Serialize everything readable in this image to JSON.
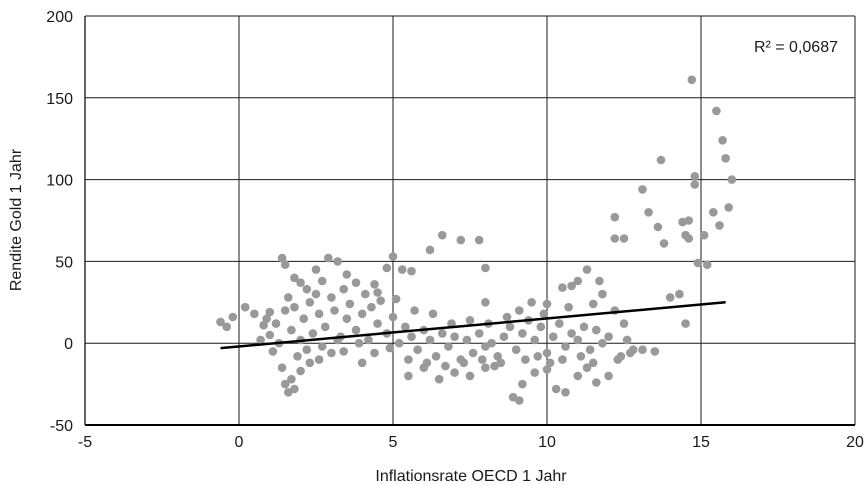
{
  "chart_data": {
    "type": "scatter",
    "title": "",
    "xlabel": "Inflationsrate OECD 1 Jahr",
    "ylabel": "Rendite Gold 1 Jahr",
    "xlim": [
      -5,
      20
    ],
    "ylim": [
      -50,
      200
    ],
    "xticks": [
      -5,
      0,
      5,
      10,
      15,
      20
    ],
    "yticks": [
      -50,
      0,
      50,
      100,
      150,
      200
    ],
    "xtick_labels": [
      "-5",
      "0",
      "5",
      "10",
      "15",
      "20"
    ],
    "ytick_labels": [
      "-50",
      "0",
      "50",
      "100",
      "150",
      "200"
    ],
    "grid": true,
    "legend": "none",
    "colors": {
      "points": "#999999",
      "trendline": "#000000",
      "grid": "#1a1a1a"
    },
    "annotation": {
      "text": "R² = 0,0687",
      "placement": "top-right"
    },
    "trendline": {
      "type": "linear",
      "x": [
        -0.6,
        15.8
      ],
      "y": [
        -3,
        25
      ]
    },
    "series": [
      {
        "values": [
          [
            -0.6,
            13
          ],
          [
            -0.4,
            10
          ],
          [
            -0.2,
            16
          ],
          [
            0.2,
            22
          ],
          [
            0.5,
            18
          ],
          [
            0.8,
            11
          ],
          [
            1.0,
            19
          ],
          [
            1.4,
            52
          ],
          [
            1.5,
            48
          ],
          [
            1.8,
            40
          ],
          [
            2.0,
            37
          ],
          [
            2.2,
            33
          ],
          [
            2.5,
            45
          ],
          [
            2.9,
            52
          ],
          [
            3.2,
            50
          ],
          [
            3.5,
            42
          ],
          [
            3.8,
            37
          ],
          [
            4.5,
            31
          ],
          [
            4.8,
            46
          ],
          [
            5.0,
            53
          ],
          [
            5.3,
            45
          ],
          [
            5.6,
            44
          ],
          [
            6.2,
            57
          ],
          [
            6.6,
            66
          ],
          [
            7.2,
            63
          ],
          [
            7.8,
            63
          ],
          [
            8.0,
            46
          ],
          [
            8.0,
            25
          ],
          [
            1.4,
            -15
          ],
          [
            1.5,
            -25
          ],
          [
            1.6,
            -30
          ],
          [
            1.7,
            -22
          ],
          [
            1.8,
            -28
          ],
          [
            2.0,
            -17
          ],
          [
            2.3,
            -12
          ],
          [
            2.6,
            -10
          ],
          [
            3.0,
            -6
          ],
          [
            4.0,
            -12
          ],
          [
            5.5,
            -20
          ],
          [
            6.0,
            -15
          ],
          [
            6.5,
            -22
          ],
          [
            7.0,
            -18
          ],
          [
            7.5,
            -20
          ],
          [
            8.0,
            -15
          ],
          [
            8.5,
            -12
          ],
          [
            8.9,
            -33
          ],
          [
            9.1,
            -35
          ],
          [
            9.2,
            -25
          ],
          [
            9.6,
            -18
          ],
          [
            10.0,
            -16
          ],
          [
            10.3,
            -28
          ],
          [
            10.6,
            -30
          ],
          [
            11.0,
            -20
          ],
          [
            11.3,
            -15
          ],
          [
            11.6,
            -24
          ],
          [
            12.0,
            -20
          ],
          [
            12.3,
            -10
          ],
          [
            12.7,
            -6
          ],
          [
            13.1,
            -4
          ],
          [
            13.5,
            -5
          ],
          [
            9.5,
            25
          ],
          [
            10.0,
            24
          ],
          [
            10.5,
            34
          ],
          [
            10.8,
            35
          ],
          [
            11.0,
            38
          ],
          [
            11.3,
            45
          ],
          [
            11.7,
            38
          ],
          [
            11.8,
            30
          ],
          [
            12.2,
            20
          ],
          [
            12.5,
            12
          ],
          [
            12.2,
            64
          ],
          [
            12.2,
            77
          ],
          [
            12.5,
            64
          ],
          [
            13.1,
            94
          ],
          [
            13.3,
            80
          ],
          [
            13.6,
            71
          ],
          [
            13.7,
            112
          ],
          [
            13.8,
            61
          ],
          [
            14.0,
            28
          ],
          [
            14.3,
            30
          ],
          [
            14.4,
            74
          ],
          [
            14.5,
            66
          ],
          [
            14.5,
            12
          ],
          [
            14.6,
            64
          ],
          [
            14.6,
            75
          ],
          [
            14.7,
            161
          ],
          [
            14.8,
            102
          ],
          [
            14.8,
            97
          ],
          [
            14.9,
            49
          ],
          [
            15.1,
            66
          ],
          [
            15.2,
            48
          ],
          [
            15.4,
            80
          ],
          [
            15.5,
            142
          ],
          [
            15.6,
            72
          ],
          [
            15.7,
            124
          ],
          [
            15.8,
            113
          ],
          [
            15.9,
            83
          ],
          [
            16.0,
            100
          ],
          [
            1.0,
            5
          ],
          [
            1.2,
            12
          ],
          [
            1.5,
            20
          ],
          [
            1.7,
            8
          ],
          [
            2.0,
            2
          ],
          [
            2.1,
            15
          ],
          [
            2.3,
            25
          ],
          [
            2.4,
            6
          ],
          [
            2.6,
            18
          ],
          [
            2.8,
            10
          ],
          [
            3.0,
            28
          ],
          [
            3.1,
            20
          ],
          [
            3.3,
            4
          ],
          [
            3.5,
            15
          ],
          [
            3.6,
            24
          ],
          [
            3.8,
            8
          ],
          [
            4.0,
            18
          ],
          [
            4.2,
            2
          ],
          [
            4.3,
            22
          ],
          [
            4.5,
            12
          ],
          [
            4.6,
            26
          ],
          [
            4.8,
            6
          ],
          [
            5.0,
            16
          ],
          [
            5.2,
            0
          ],
          [
            5.4,
            10
          ],
          [
            5.6,
            4
          ],
          [
            5.8,
            -4
          ],
          [
            6.0,
            8
          ],
          [
            6.2,
            2
          ],
          [
            6.4,
            -8
          ],
          [
            6.6,
            6
          ],
          [
            6.8,
            -2
          ],
          [
            7.0,
            4
          ],
          [
            7.2,
            -10
          ],
          [
            7.4,
            2
          ],
          [
            7.6,
            -6
          ],
          [
            7.8,
            6
          ],
          [
            8.0,
            -2
          ],
          [
            8.2,
            0
          ],
          [
            8.4,
            -8
          ],
          [
            8.6,
            4
          ],
          [
            8.8,
            10
          ],
          [
            9.0,
            -4
          ],
          [
            9.2,
            6
          ],
          [
            9.4,
            14
          ],
          [
            9.6,
            2
          ],
          [
            9.8,
            10
          ],
          [
            10.0,
            -6
          ],
          [
            10.2,
            4
          ],
          [
            10.4,
            12
          ],
          [
            10.6,
            -2
          ],
          [
            10.8,
            6
          ],
          [
            11.0,
            2
          ],
          [
            11.2,
            10
          ],
          [
            11.4,
            -4
          ],
          [
            11.6,
            8
          ],
          [
            11.8,
            0
          ],
          [
            12.0,
            4
          ],
          [
            12.4,
            -8
          ],
          [
            12.6,
            2
          ],
          [
            12.8,
            -4
          ],
          [
            1.1,
            -5
          ],
          [
            1.3,
            0
          ],
          [
            1.9,
            -8
          ],
          [
            2.2,
            -4
          ],
          [
            2.7,
            -2
          ],
          [
            3.2,
            2
          ],
          [
            3.4,
            -5
          ],
          [
            3.9,
            0
          ],
          [
            4.4,
            -6
          ],
          [
            4.9,
            -3
          ],
          [
            5.5,
            -10
          ],
          [
            6.1,
            -12
          ],
          [
            6.7,
            -14
          ],
          [
            7.3,
            -12
          ],
          [
            7.9,
            -10
          ],
          [
            8.3,
            -14
          ],
          [
            9.3,
            -10
          ],
          [
            9.7,
            -8
          ],
          [
            10.1,
            -12
          ],
          [
            10.5,
            -10
          ],
          [
            11.1,
            -8
          ],
          [
            11.5,
            -12
          ],
          [
            0.7,
            2
          ],
          [
            0.9,
            15
          ],
          [
            1.6,
            28
          ],
          [
            1.8,
            22
          ],
          [
            2.5,
            30
          ],
          [
            2.7,
            38
          ],
          [
            3.4,
            33
          ],
          [
            4.1,
            30
          ],
          [
            4.4,
            36
          ],
          [
            5.1,
            27
          ],
          [
            5.7,
            20
          ],
          [
            6.3,
            18
          ],
          [
            6.9,
            12
          ],
          [
            7.5,
            14
          ],
          [
            8.1,
            12
          ],
          [
            8.7,
            16
          ],
          [
            9.1,
            20
          ],
          [
            9.9,
            18
          ],
          [
            10.7,
            22
          ],
          [
            11.5,
            24
          ]
        ]
      }
    ]
  }
}
